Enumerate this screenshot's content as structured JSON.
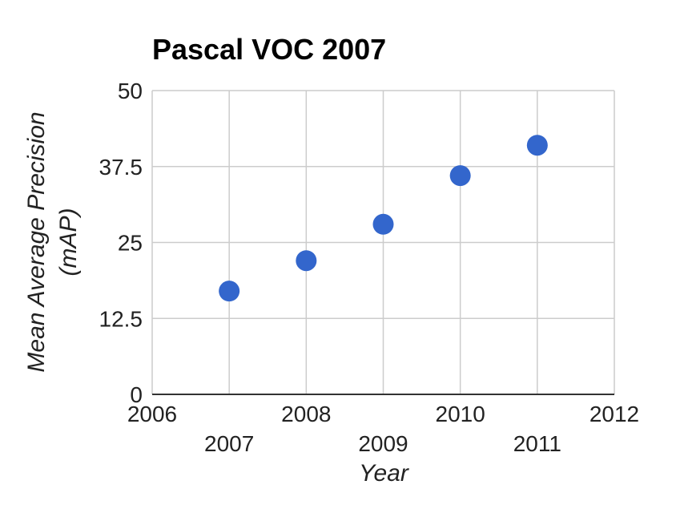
{
  "chart_data": {
    "type": "scatter",
    "title": "Pascal VOC 2007",
    "xlabel": "Year",
    "ylabel_line1": "Mean Average Precision",
    "ylabel_line2": "(mAP)",
    "xlim": [
      2006,
      2012
    ],
    "ylim": [
      0,
      50
    ],
    "x_ticks": [
      2006,
      2007,
      2008,
      2009,
      2010,
      2011,
      2012
    ],
    "x_tick_labels": [
      "2006",
      "2007",
      "2008",
      "2009",
      "2010",
      "2011",
      "2012"
    ],
    "y_ticks": [
      0,
      12.5,
      25,
      37.5,
      50
    ],
    "y_tick_labels": [
      "0",
      "12.5",
      "25",
      "37.5",
      "50"
    ],
    "grid": true,
    "marker_color": "#3366cc",
    "series": [
      {
        "x": [
          2007,
          2008,
          2009,
          2010,
          2011
        ],
        "y": [
          17,
          22,
          28,
          36,
          41
        ]
      }
    ]
  }
}
